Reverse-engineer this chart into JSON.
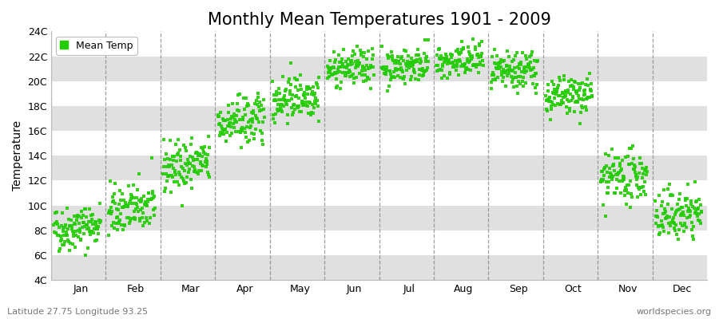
{
  "title": "Monthly Mean Temperatures 1901 - 2009",
  "ylabel": "Temperature",
  "bottom_left_text": "Latitude 27.75 Longitude 93.25",
  "bottom_right_text": "worldspecies.org",
  "legend_label": "Mean Temp",
  "dot_color": "#22CC00",
  "bg_color": "#FFFFFF",
  "band_color": "#E0E0E0",
  "ylim": [
    4,
    24
  ],
  "ytick_values": [
    4,
    6,
    8,
    10,
    12,
    14,
    16,
    18,
    20,
    22,
    24
  ],
  "ytick_labels": [
    "4C",
    "6C",
    "8C",
    "10C",
    "12C",
    "14C",
    "16C",
    "18C",
    "20C",
    "22C",
    "24C"
  ],
  "months": [
    "Jan",
    "Feb",
    "Mar",
    "Apr",
    "May",
    "Jun",
    "Jul",
    "Aug",
    "Sep",
    "Oct",
    "Nov",
    "Dec"
  ],
  "month_means": [
    8.0,
    9.5,
    13.0,
    16.5,
    18.5,
    20.8,
    21.0,
    21.3,
    20.5,
    18.5,
    12.0,
    9.0
  ],
  "month_stds": [
    0.9,
    1.0,
    1.0,
    1.0,
    0.9,
    0.7,
    0.7,
    0.7,
    0.8,
    0.8,
    1.0,
    1.0
  ],
  "n_years": 109,
  "seed": 42,
  "title_fontsize": 15,
  "axis_fontsize": 10,
  "tick_fontsize": 9,
  "dot_size": 10,
  "dot_alpha": 0.9
}
